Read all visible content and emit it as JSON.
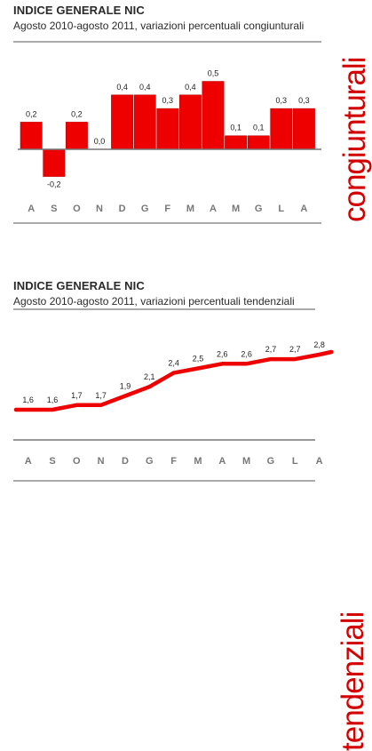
{
  "charts": [
    {
      "title": "INDICE GENERALE NIC",
      "subtitle": "Agosto 2010-agosto 2011, variazioni percentuali congiunturali",
      "side_label": "congiunturali",
      "chart_data": {
        "type": "bar",
        "categories": [
          "A",
          "S",
          "O",
          "N",
          "D",
          "G",
          "F",
          "M",
          "A",
          "M",
          "G",
          "L",
          "A"
        ],
        "values": [
          0.2,
          -0.2,
          0.2,
          0.0,
          0.4,
          0.4,
          0.3,
          0.4,
          0.5,
          0.1,
          0.1,
          0.3,
          0.3
        ],
        "value_labels": [
          "0,2",
          "-0,2",
          "0,2",
          "0,0",
          "0,4",
          "0,4",
          "0,3",
          "0,4",
          "0,5",
          "0,1",
          "0,1",
          "0,3",
          "0,3"
        ],
        "ylim": [
          -0.2,
          0.5
        ],
        "color": "#ee0000",
        "grid": false
      }
    },
    {
      "title": "INDICE GENERALE NIC",
      "subtitle": "Agosto 2010-agosto 2011, variazioni percentuali tendenziali",
      "side_label": "tendenziali",
      "chart_data": {
        "type": "line",
        "categories": [
          "A",
          "S",
          "O",
          "N",
          "D",
          "G",
          "F",
          "M",
          "A",
          "M",
          "G",
          "L",
          "A"
        ],
        "values": [
          1.6,
          1.6,
          1.7,
          1.7,
          1.9,
          2.1,
          2.4,
          2.5,
          2.6,
          2.6,
          2.7,
          2.7,
          2.8
        ],
        "value_labels": [
          "1,6",
          "1,6",
          "1,7",
          "1,7",
          "1,9",
          "2,1",
          "2,4",
          "2,5",
          "2,6",
          "2,6",
          "2,7",
          "2,7",
          "2,8"
        ],
        "ylim": [
          1.6,
          2.8
        ],
        "color": "#ee0000",
        "grid": false
      }
    }
  ]
}
